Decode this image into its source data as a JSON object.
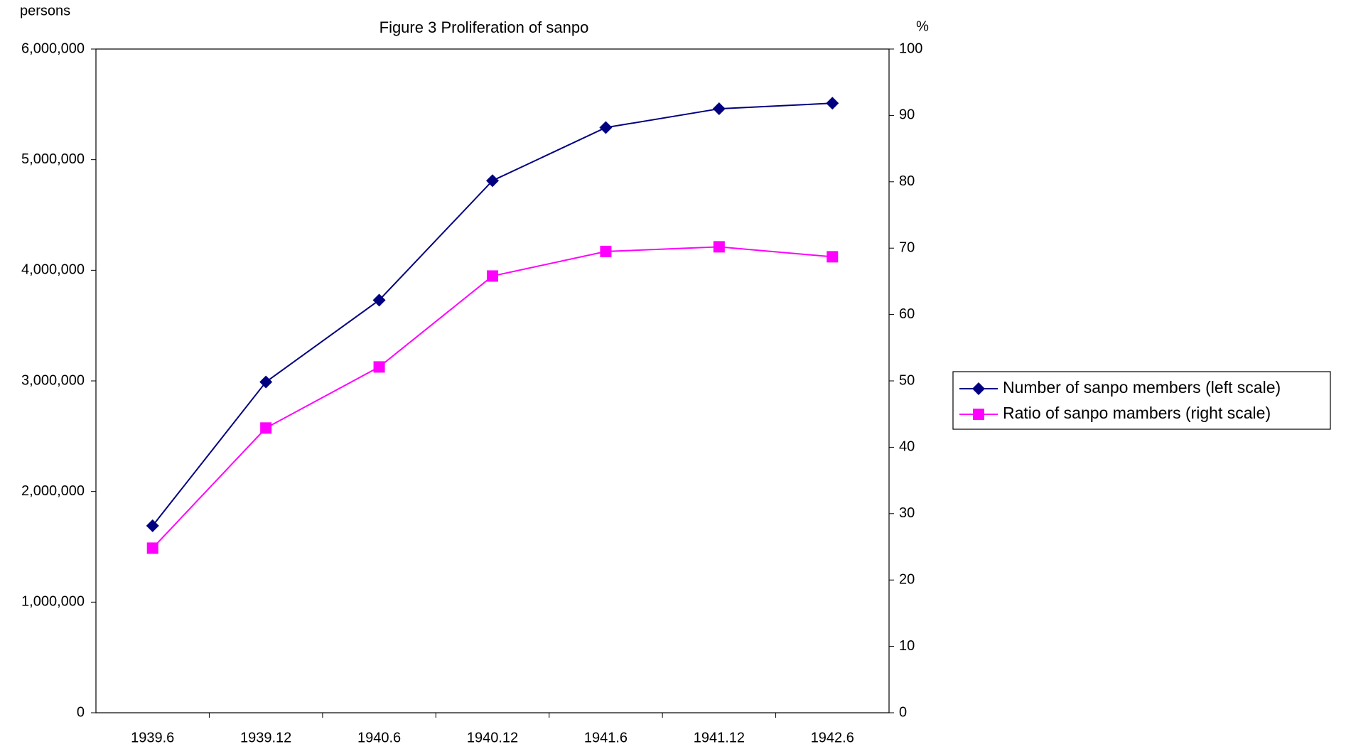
{
  "chart_data": {
    "type": "line",
    "title": "Figure 3 Proliferation of sanpo",
    "y_label": "persons",
    "y2_label": "%",
    "categories": [
      "1939.6",
      "1939.12",
      "1940.6",
      "1940.12",
      "1941.6",
      "1941.12",
      "1942.6"
    ],
    "series": [
      {
        "name": "Number of sanpo members (left scale)",
        "color": "#000080",
        "marker": "diamond",
        "values": [
          1690000,
          2990000,
          3730000,
          4810000,
          5290000,
          5460000,
          5510000
        ]
      },
      {
        "name": "Ratio of sanpo mambers (right scale)",
        "color": "#ff00ff",
        "marker": "square",
        "axis": "y2",
        "values": [
          24.8,
          42.9,
          52.1,
          65.8,
          69.5,
          70.2,
          68.7
        ]
      }
    ],
    "ylim": [
      0,
      6000000
    ],
    "yticks": [
      0,
      {
        "value": 1000000,
        "label": "1,000,000"
      },
      {
        "value": 2000000,
        "label": "2,000,000"
      },
      {
        "value": 3000000,
        "label": "3,000,000"
      },
      {
        "value": 4000000,
        "label": "4,000,000"
      },
      {
        "value": 5000000,
        "label": "5,000,000"
      },
      {
        "value": 6000000,
        "label": "6,000,000"
      }
    ],
    "y2lim": [
      0,
      100
    ],
    "y2ticks": [
      0,
      10,
      20,
      30,
      40,
      50,
      60,
      70,
      80,
      90,
      100
    ],
    "grid": false,
    "legend": "right"
  }
}
